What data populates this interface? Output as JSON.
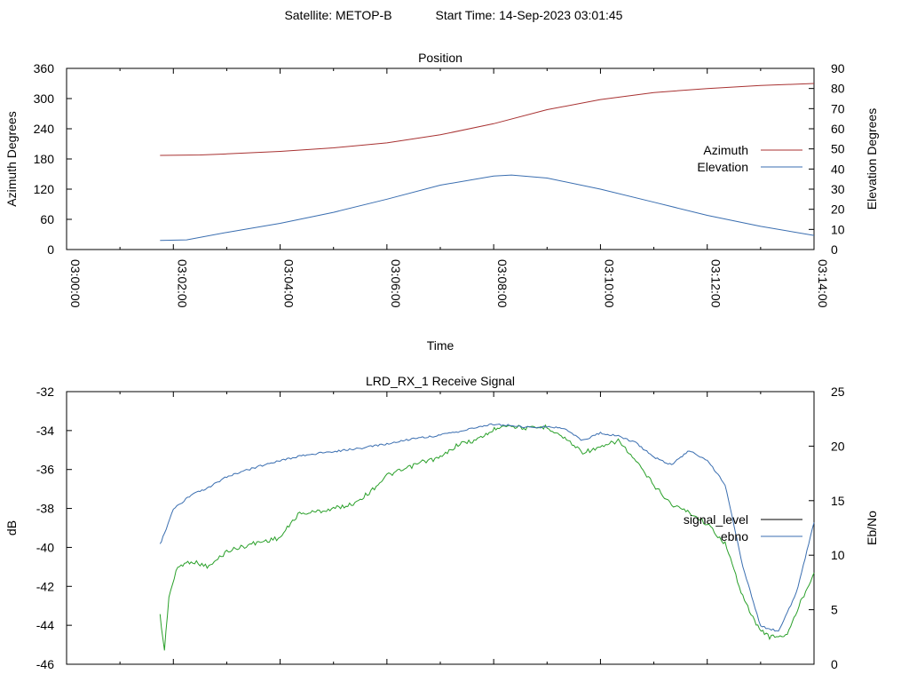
{
  "header": {
    "satellite_label": "Satellite: METOP-B",
    "start_time_label": "Start Time: 14-Sep-2023 03:01:45"
  },
  "chart_data": [
    {
      "type": "line",
      "title": "Position",
      "xlabel": "Time",
      "ylabel": "Azimuth Degrees",
      "y2label": "Elevation Degrees",
      "xlim": [
        "03:00:00",
        "03:14:00"
      ],
      "xticks": [
        "03:00:00",
        "03:02:00",
        "03:04:00",
        "03:06:00",
        "03:08:00",
        "03:10:00",
        "03:12:00",
        "03:14:00"
      ],
      "ylim": [
        0,
        360
      ],
      "yticks": [
        0,
        60,
        120,
        180,
        240,
        300,
        360
      ],
      "y2lim": [
        0,
        90
      ],
      "y2ticks": [
        0,
        10,
        20,
        30,
        40,
        50,
        60,
        70,
        80,
        90
      ],
      "legend_position": "right",
      "series": [
        {
          "name": "Azimuth",
          "axis": "left",
          "color": "#a83232",
          "x": [
            "03:01:45",
            "03:02:30",
            "03:03:00",
            "03:04:00",
            "03:05:00",
            "03:06:00",
            "03:07:00",
            "03:08:00",
            "03:09:00",
            "03:10:00",
            "03:11:00",
            "03:12:00",
            "03:13:00",
            "03:14:00"
          ],
          "y": [
            187,
            188,
            190,
            195,
            202,
            212,
            228,
            250,
            278,
            298,
            312,
            320,
            326,
            330
          ]
        },
        {
          "name": "Elevation",
          "axis": "right",
          "color": "#3a6eb0",
          "x": [
            "03:01:45",
            "03:02:15",
            "03:03:00",
            "03:04:00",
            "03:05:00",
            "03:06:00",
            "03:07:00",
            "03:08:00",
            "03:08:20",
            "03:09:00",
            "03:10:00",
            "03:11:00",
            "03:12:00",
            "03:13:00",
            "03:14:00"
          ],
          "y": [
            4.5,
            4.8,
            8.5,
            13,
            18.5,
            25,
            32,
            36.5,
            37,
            35.5,
            30,
            23.5,
            17,
            11.5,
            7
          ]
        }
      ]
    },
    {
      "type": "line",
      "title": "LRD_RX_1 Receive Signal",
      "ylabel": "dB",
      "y2label": "Eb/No",
      "ylim": [
        -46,
        -32
      ],
      "yticks": [
        -46,
        -44,
        -42,
        -40,
        -38,
        -36,
        -34,
        -32
      ],
      "y2lim": [
        0,
        25
      ],
      "y2ticks": [
        0,
        5,
        10,
        15,
        20,
        25
      ],
      "xlim": [
        "03:00:00",
        "03:14:00"
      ],
      "legend_position": "right",
      "series": [
        {
          "name": "signal_level",
          "axis": "left",
          "color": "#2aa02a",
          "legend_color": "#000000",
          "x": [
            "03:01:45",
            "03:01:50",
            "03:01:55",
            "03:02:05",
            "03:02:20",
            "03:02:40",
            "03:03:00",
            "03:03:30",
            "03:04:00",
            "03:04:20",
            "03:04:50",
            "03:05:20",
            "03:05:40",
            "03:06:00",
            "03:06:20",
            "03:06:40",
            "03:07:00",
            "03:07:20",
            "03:07:40",
            "03:07:55",
            "03:08:10",
            "03:08:40",
            "03:09:00",
            "03:09:20",
            "03:09:40",
            "03:10:00",
            "03:10:20",
            "03:10:40",
            "03:11:00",
            "03:11:20",
            "03:11:40",
            "03:12:00",
            "03:12:20",
            "03:12:40",
            "03:12:55",
            "03:13:10",
            "03:13:30",
            "03:13:45",
            "03:14:00"
          ],
          "y": [
            -43.5,
            -45.3,
            -42.5,
            -41,
            -40.7,
            -41,
            -40.2,
            -39.8,
            -39.5,
            -38.3,
            -38.1,
            -37.8,
            -37.2,
            -36.3,
            -36,
            -35.6,
            -35.4,
            -34.7,
            -34.5,
            -34.1,
            -33.7,
            -33.9,
            -33.8,
            -34.4,
            -35.1,
            -34.9,
            -34.5,
            -35.6,
            -36.8,
            -37.8,
            -38.2,
            -38.8,
            -39.8,
            -42.5,
            -44,
            -44.6,
            -44.5,
            -42.8,
            -41.3
          ]
        },
        {
          "name": "ebno",
          "axis": "right",
          "color": "#3a6eb0",
          "x": [
            "03:01:45",
            "03:01:50",
            "03:02:00",
            "03:02:20",
            "03:02:40",
            "03:03:00",
            "03:03:30",
            "03:04:00",
            "03:04:30",
            "03:05:00",
            "03:05:30",
            "03:06:00",
            "03:06:30",
            "03:07:00",
            "03:07:30",
            "03:07:55",
            "03:08:20",
            "03:08:40",
            "03:09:00",
            "03:09:20",
            "03:09:40",
            "03:10:00",
            "03:10:20",
            "03:10:40",
            "03:11:00",
            "03:11:20",
            "03:11:40",
            "03:12:00",
            "03:12:20",
            "03:12:40",
            "03:13:00",
            "03:13:20",
            "03:13:40",
            "03:14:00"
          ],
          "y": [
            11,
            12,
            14.2,
            15.5,
            16.2,
            17.2,
            18,
            18.7,
            19.2,
            19.5,
            19.8,
            20.2,
            20.7,
            21,
            21.5,
            22,
            21.9,
            21.7,
            21.8,
            21.6,
            20.5,
            21.2,
            20.9,
            20.3,
            19,
            18.3,
            19.6,
            18.7,
            16.5,
            9,
            3.5,
            3,
            6.5,
            13
          ]
        }
      ]
    }
  ]
}
